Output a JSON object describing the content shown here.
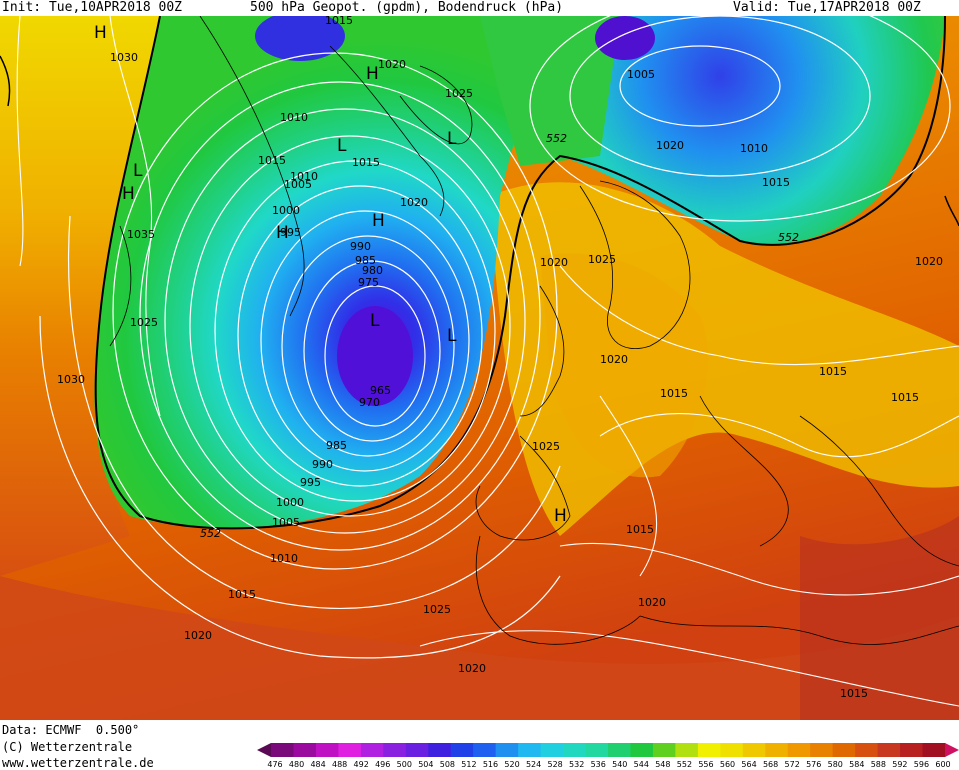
{
  "header": {
    "init": "Init: Tue,10APR2018 00Z",
    "title": "500 hPa Geopot. (gpdm), Bodendruck (hPa)",
    "valid": "Valid: Tue,17APR2018 00Z"
  },
  "footer": {
    "data_line": "Data: ECMWF  0.500°",
    "copyright": "(C) Wetterzentrale",
    "url": "www.wetterzentrale.de"
  },
  "colorbar": {
    "ticks": [
      "476",
      "480",
      "484",
      "488",
      "492",
      "496",
      "500",
      "504",
      "508",
      "512",
      "516",
      "520",
      "524",
      "528",
      "532",
      "536",
      "540",
      "544",
      "548",
      "552",
      "556",
      "560",
      "564",
      "568",
      "572",
      "576",
      "580",
      "584",
      "588",
      "592",
      "596",
      "600"
    ],
    "colors": [
      "#5a0a55",
      "#7a0a7a",
      "#9a0a9e",
      "#c010c4",
      "#e020e0",
      "#b020e0",
      "#8a20e0",
      "#6a20e0",
      "#4020e0",
      "#2040e8",
      "#2060f0",
      "#2090f0",
      "#20b8f0",
      "#20d0e0",
      "#20d8c0",
      "#20d8a0",
      "#20d070",
      "#20c840",
      "#60d020",
      "#b0e010",
      "#f0f000",
      "#f0e000",
      "#f0c800",
      "#f0b000",
      "#f09800",
      "#e88000",
      "#e06800",
      "#d85010",
      "#c83820",
      "#b82020",
      "#a01020",
      "#d01060"
    ]
  },
  "map_labels": {
    "pressure": [
      {
        "text": "1015",
        "l": "1015-top"
      },
      {
        "text": "1020",
        "l": "1020-a"
      },
      {
        "text": "1025",
        "l": "1025-a"
      },
      {
        "text": "1005",
        "l": "1005-a"
      },
      {
        "text": "1030",
        "l": "1030-a"
      },
      {
        "text": "1010",
        "l": "1010-a"
      },
      {
        "text": "1015",
        "l": "1015-a"
      },
      {
        "text": "1015",
        "l": "1015-b"
      },
      {
        "text": "1020",
        "l": "1020-b"
      },
      {
        "text": "1010",
        "l": "1010-b"
      },
      {
        "text": "1015",
        "l": "1015-c"
      },
      {
        "text": "1010",
        "l": "1010-c"
      },
      {
        "text": "1005",
        "l": "1005-b"
      },
      {
        "text": "1000",
        "l": "1000-a"
      },
      {
        "text": "1020",
        "l": "1020-c"
      },
      {
        "text": "1035",
        "l": "1035-a"
      },
      {
        "text": "995",
        "l": "995-a"
      },
      {
        "text": "990",
        "l": "990-a"
      },
      {
        "text": "985",
        "l": "985-a"
      },
      {
        "text": "980",
        "l": "980-a"
      },
      {
        "text": "975",
        "l": "975-a"
      },
      {
        "text": "1020",
        "l": "1020-d"
      },
      {
        "text": "1025",
        "l": "1025-b"
      },
      {
        "text": "1020",
        "l": "1020-e"
      },
      {
        "text": "1025",
        "l": "1025-c"
      },
      {
        "text": "1030",
        "l": "1030-b"
      },
      {
        "text": "1020",
        "l": "1020-f"
      },
      {
        "text": "1015",
        "l": "1015-d"
      },
      {
        "text": "1015",
        "l": "1015-e"
      },
      {
        "text": "1015",
        "l": "1015-f"
      },
      {
        "text": "965",
        "l": "965-a"
      },
      {
        "text": "970",
        "l": "970-a"
      },
      {
        "text": "1025",
        "l": "1025-d"
      },
      {
        "text": "985",
        "l": "985-b"
      },
      {
        "text": "990",
        "l": "990-b"
      },
      {
        "text": "995",
        "l": "995-b"
      },
      {
        "text": "1000",
        "l": "1000-b"
      },
      {
        "text": "1005",
        "l": "1005-c"
      },
      {
        "text": "1015",
        "l": "1015-g"
      },
      {
        "text": "1010",
        "l": "1010-d"
      },
      {
        "text": "1015",
        "l": "1015-h"
      },
      {
        "text": "1020",
        "l": "1020-g"
      },
      {
        "text": "1025",
        "l": "1025-e"
      },
      {
        "text": "1020",
        "l": "1020-h"
      },
      {
        "text": "1020",
        "l": "1020-i"
      },
      {
        "text": "1015",
        "l": "1015-i"
      }
    ],
    "geopot": [
      "552",
      "552",
      "552"
    ],
    "highs": [
      "H",
      "H",
      "H",
      "H",
      "H",
      "H"
    ],
    "lows": [
      "L",
      "L",
      "L",
      "L",
      "L"
    ]
  }
}
